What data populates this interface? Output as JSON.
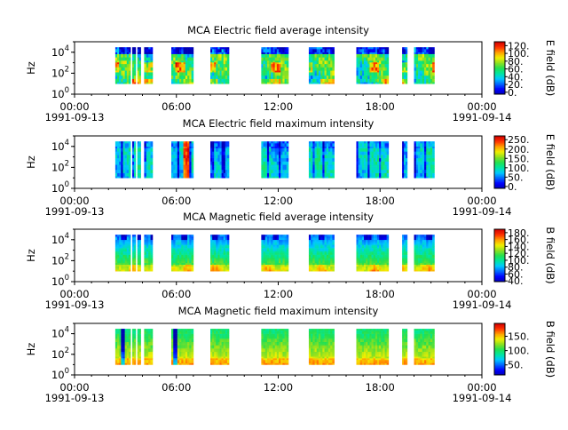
{
  "figure": {
    "background": "#ffffff",
    "colormap": [
      "#0000b3",
      "#0000ff",
      "#0066ff",
      "#00c8ff",
      "#00e6a0",
      "#22e050",
      "#8ce020",
      "#f0f000",
      "#ffa000",
      "#ff3000",
      "#d00000"
    ]
  },
  "time_axis": {
    "ticks": [
      {
        "hour": 0,
        "time": "00:00",
        "date": "1991-09-13"
      },
      {
        "hour": 6,
        "time": "06:00",
        "date": ""
      },
      {
        "hour": 12,
        "time": "12:00",
        "date": ""
      },
      {
        "hour": 18,
        "time": "18:00",
        "date": ""
      },
      {
        "hour": 24,
        "time": "00:00",
        "date": "1991-09-14"
      }
    ]
  },
  "chart_data": [
    {
      "type": "heatmap",
      "title": "MCA  Electric field average intensity",
      "xlabel": "",
      "ylabel": "Hz",
      "xlim": [
        "1991-09-13 00:00",
        "1991-09-14 00:00"
      ],
      "ylog": true,
      "ylim": [
        1,
        100000
      ],
      "yticks": [
        {
          "exp": "0",
          "value": 1
        },
        {
          "exp": "2",
          "value": 100
        },
        {
          "exp": "4",
          "value": 10000
        }
      ],
      "colorbar": {
        "label": "E field (dB)",
        "range": [
          -5,
          130
        ],
        "ticks": [
          "0.",
          "20.",
          "40.",
          "60.",
          "80.",
          "100.",
          "120."
        ],
        "tick_values": [
          0,
          20,
          40,
          60,
          80,
          100,
          120
        ]
      },
      "data_window_hours": [
        "02:25",
        "22:20"
      ],
      "character": "mostly 40-80 dB (green) with blue bands near 10 kHz and warm 80-110 dB patches near 100 Hz",
      "data_intervals_hours": [
        [
          2.4,
          3.3
        ],
        [
          3.4,
          3.6
        ],
        [
          3.7,
          3.9
        ],
        [
          4.1,
          4.6
        ],
        [
          5.7,
          7.0
        ],
        [
          8.0,
          9.1
        ],
        [
          11.0,
          12.6
        ],
        [
          13.8,
          15.3
        ],
        [
          16.6,
          18.5
        ],
        [
          19.3,
          19.6
        ],
        [
          20.0,
          21.2
        ]
      ]
    },
    {
      "type": "heatmap",
      "title": "MCA  Electric field maximum intensity",
      "xlabel": "",
      "ylabel": "Hz",
      "xlim": [
        "1991-09-13 00:00",
        "1991-09-14 00:00"
      ],
      "ylog": true,
      "ylim": [
        1,
        100000
      ],
      "yticks": [
        {
          "exp": "0",
          "value": 1
        },
        {
          "exp": "2",
          "value": 100
        },
        {
          "exp": "4",
          "value": 10000
        }
      ],
      "colorbar": {
        "label": "E field (dB)",
        "range": [
          -10,
          270
        ],
        "ticks": [
          "0.",
          "50.",
          "100.",
          "150.",
          "200.",
          "250."
        ],
        "tick_values": [
          0,
          50,
          100,
          150,
          200,
          250
        ]
      },
      "data_window_hours": [
        "02:25",
        "22:20"
      ],
      "character": "mostly 50-110 dB (cyan/green) with deep blue vertical bands and a brief 200+ dB spike near 06:40",
      "data_intervals_hours": [
        [
          2.4,
          3.3
        ],
        [
          3.4,
          3.6
        ],
        [
          3.7,
          3.9
        ],
        [
          4.1,
          4.6
        ],
        [
          5.7,
          7.0
        ],
        [
          8.0,
          9.1
        ],
        [
          11.0,
          12.6
        ],
        [
          13.8,
          15.3
        ],
        [
          16.6,
          18.5
        ],
        [
          19.3,
          19.6
        ],
        [
          20.0,
          21.2
        ]
      ]
    },
    {
      "type": "heatmap",
      "title": "MCA  Magnetic field average intensity",
      "xlabel": "",
      "ylabel": "Hz",
      "xlim": [
        "1991-09-13 00:00",
        "1991-09-14 00:00"
      ],
      "ylog": true,
      "ylim": [
        1,
        100000
      ],
      "yticks": [
        {
          "exp": "0",
          "value": 1
        },
        {
          "exp": "2",
          "value": 100
        },
        {
          "exp": "4",
          "value": 10000
        }
      ],
      "colorbar": {
        "label": "B field (dB)",
        "range": [
          38,
          190
        ],
        "ticks": [
          "40.",
          "60.",
          "80.",
          "100.",
          "120.",
          "140.",
          "160.",
          "180."
        ],
        "tick_values": [
          40,
          60,
          80,
          100,
          120,
          140,
          160,
          180
        ]
      },
      "data_window_hours": [
        "02:25",
        "22:20"
      ],
      "character": "frequency-layered: cyan/green 90-110 dB near 10 kHz grading to yellow/orange 140-160 dB near 10 Hz",
      "data_intervals_hours": [
        [
          2.4,
          3.3
        ],
        [
          3.4,
          3.6
        ],
        [
          3.7,
          3.9
        ],
        [
          4.1,
          4.6
        ],
        [
          5.7,
          7.0
        ],
        [
          8.0,
          9.1
        ],
        [
          11.0,
          12.6
        ],
        [
          13.8,
          15.3
        ],
        [
          16.6,
          18.5
        ],
        [
          19.3,
          19.6
        ],
        [
          20.0,
          21.2
        ]
      ]
    },
    {
      "type": "heatmap",
      "title": "MCA  Magnetic field maximum intensity",
      "xlabel": "",
      "ylabel": "Hz",
      "xlim": [
        "1991-09-13 00:00",
        "1991-09-14 00:00"
      ],
      "ylog": true,
      "ylim": [
        1,
        100000
      ],
      "yticks": [
        {
          "exp": "0",
          "value": 1
        },
        {
          "exp": "2",
          "value": 100
        },
        {
          "exp": "4",
          "value": 10000
        }
      ],
      "colorbar": {
        "label": "B field (dB)",
        "range": [
          15,
          195
        ],
        "ticks": [
          "50.",
          "100.",
          "150."
        ],
        "tick_values": [
          50,
          100,
          150
        ]
      },
      "data_window_hours": [
        "02:25",
        "22:20"
      ],
      "character": "green 100-120 dB near 10 kHz grading to yellow/orange 150-170 dB near 10 Hz, with blue dropouts around 03:00 and 06:00",
      "data_intervals_hours": [
        [
          2.4,
          3.3
        ],
        [
          3.4,
          3.6
        ],
        [
          3.7,
          3.9
        ],
        [
          4.1,
          4.6
        ],
        [
          5.7,
          7.0
        ],
        [
          8.0,
          9.1
        ],
        [
          11.0,
          12.6
        ],
        [
          13.8,
          15.3
        ],
        [
          16.6,
          18.5
        ],
        [
          19.3,
          19.6
        ],
        [
          20.0,
          21.2
        ]
      ]
    }
  ]
}
